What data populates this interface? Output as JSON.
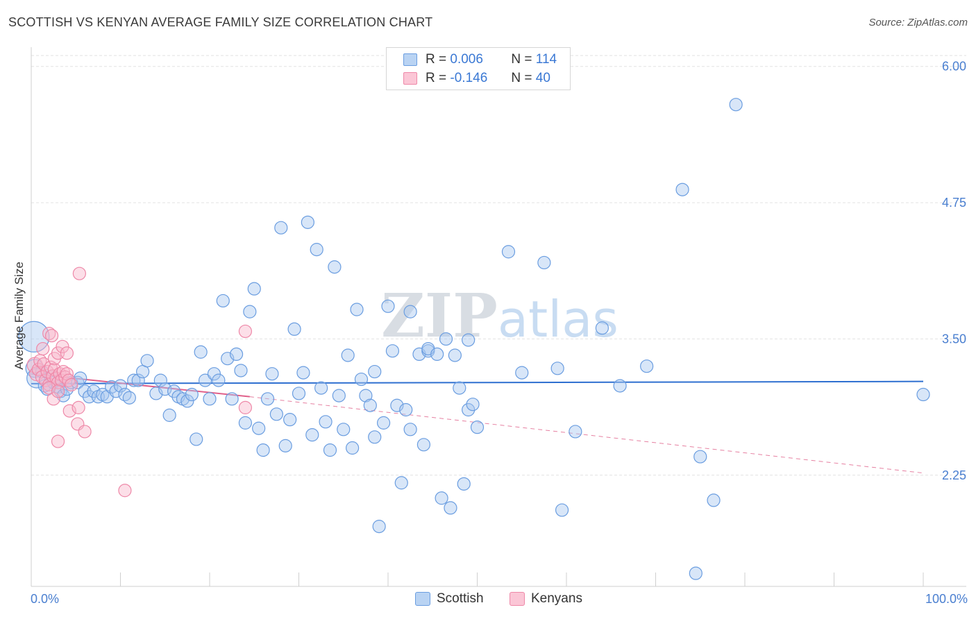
{
  "title": "SCOTTISH VS KENYAN AVERAGE FAMILY SIZE CORRELATION CHART",
  "source": "Source: ZipAtlas.com",
  "watermark": "ZIPatlas",
  "legend_stats": [
    {
      "r_label": "R =",
      "r_value": "0.006",
      "n_label": "N =",
      "n_value": "114"
    },
    {
      "r_label": "R =",
      "r_value": "-0.146",
      "n_label": "N =",
      "n_value": "40"
    }
  ],
  "colors": {
    "scottish_fill": "#a8c8f0",
    "scottish_stroke": "#6a9de0",
    "scottish_line": "#2e6fd0",
    "kenyan_fill": "#f8b8cc",
    "kenyan_stroke": "#ee88a8",
    "kenyan_line": "#e0608a",
    "grid": "#e2e2e2",
    "tick_label": "#4a7fd0"
  },
  "chart_data": {
    "type": "scatter",
    "title": "SCOTTISH VS KENYAN AVERAGE FAMILY SIZE CORRELATION CHART",
    "xlabel": "",
    "ylabel": "Average Family Size",
    "xlim": [
      0,
      100
    ],
    "ylim": [
      1.23,
      6.1
    ],
    "x_tick_labels": [
      "0.0%",
      "100.0%"
    ],
    "y_ticks": [
      2.25,
      3.5,
      4.75,
      6.0
    ],
    "y_tick_labels": [
      "2.25",
      "3.50",
      "4.75",
      "6.00"
    ],
    "legend": [
      "Scottish",
      "Kenyans"
    ],
    "series": [
      {
        "name": "Scottish",
        "trend": {
          "x": [
            0,
            100
          ],
          "y": [
            3.09,
            3.11
          ]
        },
        "points": [
          [
            0.3,
            3.52,
            22
          ],
          [
            0.4,
            3.23,
            13
          ],
          [
            0.6,
            3.14,
            14
          ],
          [
            1.2,
            3.2,
            9
          ],
          [
            1.5,
            3.07,
            9
          ],
          [
            1.8,
            3.04,
            9
          ],
          [
            2.2,
            3.15,
            9
          ],
          [
            2.5,
            3.1,
            9
          ],
          [
            3.0,
            3.06,
            9
          ],
          [
            3.3,
            3.02,
            9
          ],
          [
            3.6,
            2.98,
            9
          ],
          [
            4.0,
            3.04,
            9
          ],
          [
            4.5,
            3.1,
            9
          ],
          [
            5.2,
            3.1,
            9
          ],
          [
            5.5,
            3.14,
            9
          ],
          [
            6.0,
            3.02,
            9
          ],
          [
            6.5,
            2.97,
            9
          ],
          [
            7.0,
            3.02,
            9
          ],
          [
            7.5,
            2.97,
            9
          ],
          [
            8.0,
            2.99,
            9
          ],
          [
            8.5,
            2.97,
            9
          ],
          [
            9.0,
            3.06,
            9
          ],
          [
            9.5,
            3.02,
            9
          ],
          [
            10.0,
            3.07,
            9
          ],
          [
            10.5,
            2.99,
            9
          ],
          [
            11.0,
            2.96,
            9
          ],
          [
            11.5,
            3.12,
            9
          ],
          [
            12.0,
            3.12,
            9
          ],
          [
            12.5,
            3.2,
            9
          ],
          [
            13.0,
            3.3,
            9
          ],
          [
            14.0,
            3.0,
            9
          ],
          [
            14.5,
            3.12,
            9
          ],
          [
            15.0,
            3.04,
            9
          ],
          [
            15.5,
            2.8,
            9
          ],
          [
            16.0,
            3.02,
            9
          ],
          [
            16.5,
            2.97,
            9
          ],
          [
            17.0,
            2.95,
            9
          ],
          [
            17.5,
            2.93,
            9
          ],
          [
            18.0,
            2.99,
            9
          ],
          [
            18.5,
            2.58,
            9
          ],
          [
            19.0,
            3.38,
            9
          ],
          [
            19.5,
            3.12,
            9
          ],
          [
            20.0,
            2.95,
            9
          ],
          [
            20.5,
            3.18,
            9
          ],
          [
            21.0,
            3.12,
            9
          ],
          [
            21.5,
            3.85,
            9
          ],
          [
            22.0,
            3.32,
            9
          ],
          [
            22.5,
            2.95,
            9
          ],
          [
            23.0,
            3.36,
            9
          ],
          [
            23.5,
            3.21,
            9
          ],
          [
            24.0,
            2.73,
            9
          ],
          [
            24.5,
            3.75,
            9
          ],
          [
            25.0,
            3.96,
            9
          ],
          [
            25.5,
            2.68,
            9
          ],
          [
            26.0,
            2.48,
            9
          ],
          [
            26.5,
            2.95,
            9
          ],
          [
            27.0,
            3.18,
            9
          ],
          [
            27.5,
            2.81,
            9
          ],
          [
            28.0,
            4.52,
            9
          ],
          [
            28.5,
            2.52,
            9
          ],
          [
            29.0,
            2.76,
            9
          ],
          [
            29.5,
            3.59,
            9
          ],
          [
            30.0,
            3.0,
            9
          ],
          [
            30.5,
            3.19,
            9
          ],
          [
            31.0,
            4.57,
            9
          ],
          [
            32.0,
            4.32,
            9
          ],
          [
            31.5,
            2.62,
            9
          ],
          [
            32.5,
            3.05,
            9
          ],
          [
            33.0,
            2.74,
            9
          ],
          [
            33.5,
            2.48,
            9
          ],
          [
            34.0,
            4.16,
            9
          ],
          [
            34.5,
            2.98,
            9
          ],
          [
            35.0,
            2.67,
            9
          ],
          [
            35.5,
            3.35,
            9
          ],
          [
            36.0,
            2.5,
            9
          ],
          [
            36.5,
            3.77,
            9
          ],
          [
            37.0,
            3.13,
            9
          ],
          [
            37.5,
            2.98,
            9
          ],
          [
            38.0,
            2.89,
            9
          ],
          [
            38.5,
            3.2,
            9
          ],
          [
            38.5,
            2.6,
            9
          ],
          [
            39.0,
            1.78,
            9
          ],
          [
            39.5,
            2.73,
            9
          ],
          [
            40.0,
            3.8,
            9
          ],
          [
            40.5,
            3.39,
            9
          ],
          [
            41.0,
            2.89,
            9
          ],
          [
            41.5,
            2.18,
            9
          ],
          [
            42.0,
            2.85,
            9
          ],
          [
            42.5,
            3.75,
            9
          ],
          [
            42.5,
            2.67,
            9
          ],
          [
            43.5,
            3.36,
            9
          ],
          [
            44.0,
            2.53,
            9
          ],
          [
            44.5,
            3.39,
            9
          ],
          [
            44.5,
            3.41,
            9
          ],
          [
            45.5,
            3.36,
            9
          ],
          [
            46.0,
            2.04,
            9
          ],
          [
            46.5,
            3.5,
            9
          ],
          [
            47.0,
            1.95,
            9
          ],
          [
            47.5,
            3.35,
            9
          ],
          [
            48.0,
            3.05,
            9
          ],
          [
            48.5,
            2.17,
            9
          ],
          [
            49.0,
            3.49,
            9
          ],
          [
            49.0,
            2.85,
            9
          ],
          [
            49.5,
            2.9,
            9
          ],
          [
            50.0,
            2.69,
            9
          ],
          [
            53.5,
            4.3,
            9
          ],
          [
            55.0,
            3.19,
            9
          ],
          [
            57.5,
            4.2,
            9
          ],
          [
            59.0,
            3.23,
            9
          ],
          [
            59.5,
            1.93,
            9
          ],
          [
            61.0,
            2.65,
            9
          ],
          [
            64.0,
            3.6,
            9
          ],
          [
            66.0,
            3.07,
            9
          ],
          [
            69.0,
            3.25,
            9
          ],
          [
            73.0,
            4.87,
            9
          ],
          [
            74.5,
            1.35,
            9
          ],
          [
            75.0,
            2.42,
            9
          ],
          [
            76.5,
            2.02,
            9
          ],
          [
            79.0,
            5.65,
            9
          ],
          [
            100.0,
            2.99,
            9
          ]
        ]
      },
      {
        "name": "Kenyans",
        "trend": {
          "x": [
            0,
            24.5,
            100
          ],
          "y": [
            3.18,
            2.97,
            2.27
          ],
          "solid_until": 24.5
        },
        "points": [
          [
            0.4,
            3.26,
            11
          ],
          [
            0.6,
            3.18,
            10
          ],
          [
            0.8,
            3.22,
            9
          ],
          [
            1.0,
            3.3,
            9
          ],
          [
            1.2,
            3.15,
            9
          ],
          [
            1.4,
            3.27,
            9
          ],
          [
            1.6,
            3.12,
            9
          ],
          [
            1.8,
            3.2,
            9
          ],
          [
            2.0,
            3.08,
            9
          ],
          [
            2.2,
            3.24,
            9
          ],
          [
            2.4,
            3.16,
            9
          ],
          [
            2.6,
            3.22,
            9
          ],
          [
            2.8,
            3.14,
            9
          ],
          [
            3.0,
            3.1,
            9
          ],
          [
            3.2,
            3.18,
            9
          ],
          [
            3.4,
            3.12,
            9
          ],
          [
            3.6,
            3.2,
            9
          ],
          [
            3.8,
            3.15,
            9
          ],
          [
            4.0,
            3.18,
            9
          ],
          [
            4.2,
            3.12,
            9
          ],
          [
            4.5,
            3.08,
            9
          ],
          [
            1.3,
            3.41,
            9
          ],
          [
            2.0,
            3.55,
            9
          ],
          [
            2.3,
            3.53,
            9
          ],
          [
            2.6,
            3.32,
            9
          ],
          [
            3.0,
            3.37,
            9
          ],
          [
            3.5,
            3.43,
            9
          ],
          [
            4.0,
            3.37,
            9
          ],
          [
            2.0,
            3.05,
            9
          ],
          [
            2.5,
            2.95,
            9
          ],
          [
            3.0,
            3.02,
            9
          ],
          [
            4.3,
            2.84,
            9
          ],
          [
            5.2,
            2.72,
            9
          ],
          [
            5.3,
            2.87,
            9
          ],
          [
            5.4,
            4.1,
            9
          ],
          [
            6.0,
            2.65,
            9
          ],
          [
            3.0,
            2.56,
            9
          ],
          [
            24.0,
            3.57,
            9
          ],
          [
            24.0,
            2.87,
            9
          ],
          [
            10.5,
            2.11,
            9
          ]
        ]
      }
    ]
  }
}
